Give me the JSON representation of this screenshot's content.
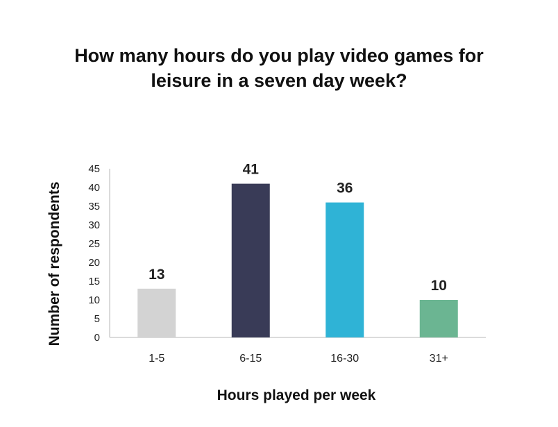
{
  "chart_data": {
    "type": "bar",
    "title_lines": [
      "How many hours do you play video games for",
      "leisure in a seven day week?"
    ],
    "categories": [
      "1-5",
      "6-15",
      "16-30",
      "31+"
    ],
    "values": [
      13,
      41,
      36,
      10
    ],
    "colors": [
      "#d3d3d3",
      "#393b57",
      "#2fb3d6",
      "#6bb592"
    ],
    "xlabel": "Hours played per week",
    "ylabel": "Number of respondents",
    "ylim": [
      0,
      45
    ],
    "yticks": [
      0,
      5,
      10,
      15,
      20,
      25,
      30,
      35,
      40,
      45
    ],
    "grid": false,
    "data_labels": true,
    "legend": "none"
  }
}
